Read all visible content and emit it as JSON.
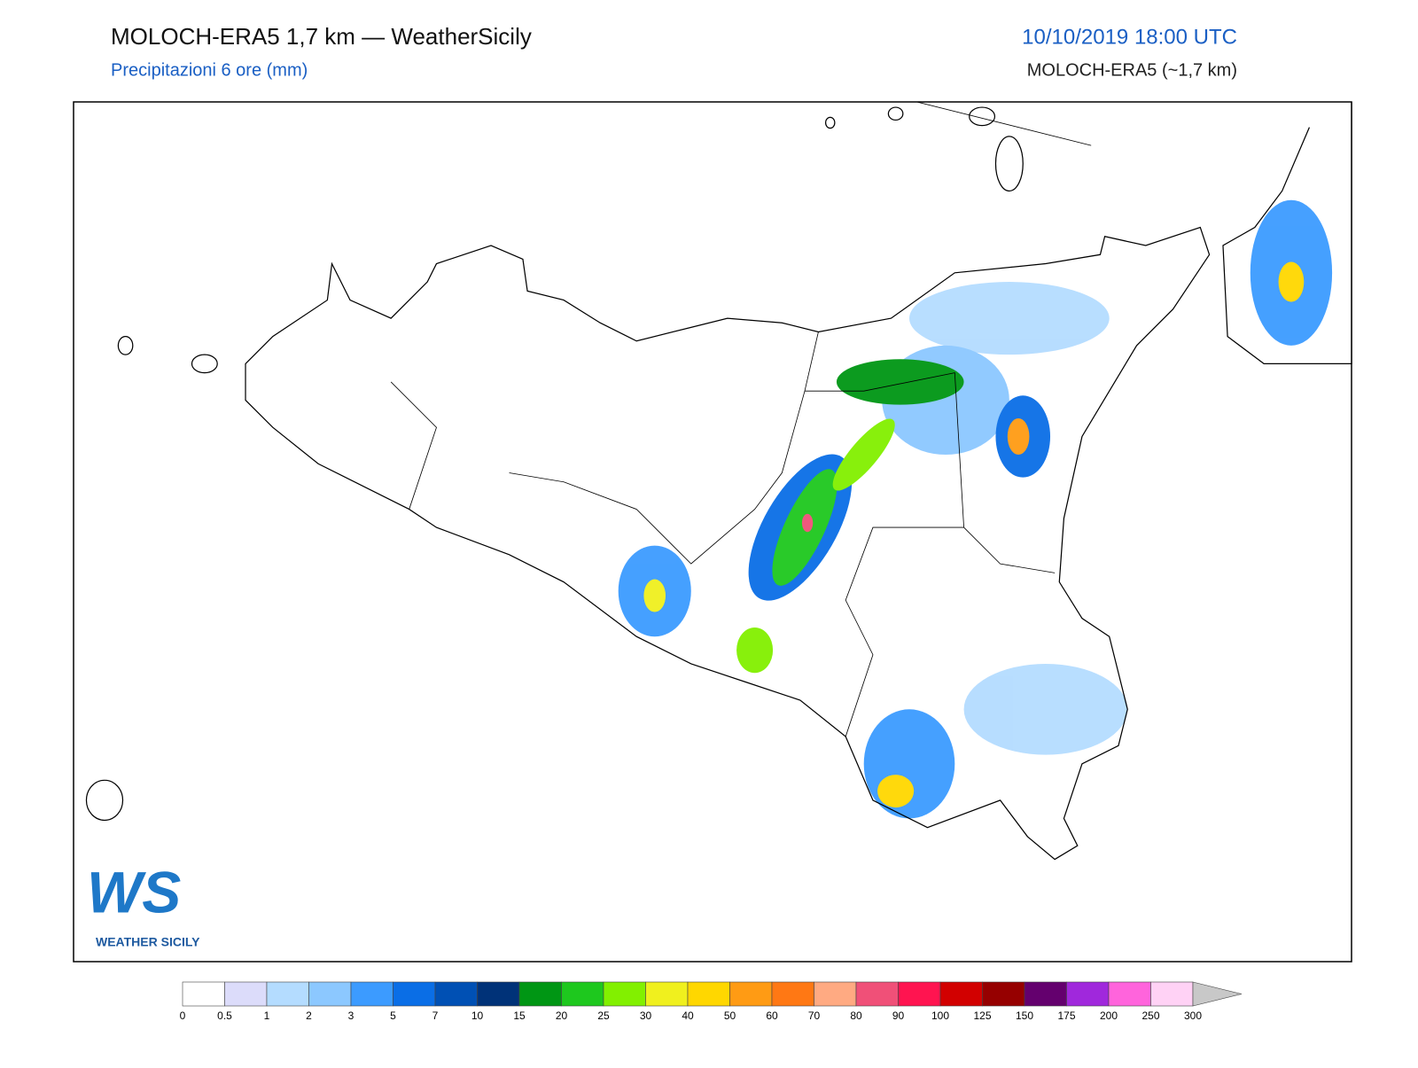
{
  "header": {
    "title": "MOLOCH-ERA5 1,7 km — WeatherSicily",
    "subtitle": "Precipitazioni 6 ore (mm)",
    "date": "10/10/2019 18:00 UTC",
    "model": "MOLOCH-ERA5 (~1,7 km)"
  },
  "logo": {
    "mark": "WS",
    "name": "WEATHER SICILY"
  },
  "colorbar": {
    "ticks": [
      0,
      0.5,
      1,
      2,
      3,
      5,
      7,
      10,
      15,
      20,
      25,
      30,
      40,
      50,
      60,
      70,
      80,
      90,
      100,
      125,
      150,
      175,
      200,
      250,
      300
    ],
    "colors": [
      "#ffffff",
      "#dcdcfa",
      "#b4dcff",
      "#8cc8ff",
      "#3c9bff",
      "#0a6ee6",
      "#0050b4",
      "#003278",
      "#009614",
      "#1ec81e",
      "#82f000",
      "#f0f01e",
      "#ffd700",
      "#ff9b14",
      "#ff7814",
      "#ffaa82",
      "#f05078",
      "#ff1450",
      "#d20000",
      "#960000",
      "#64006e",
      "#a028dc",
      "#ff64dc",
      "#ffd2f5"
    ],
    "extend_color": "#c8c8c8"
  }
}
